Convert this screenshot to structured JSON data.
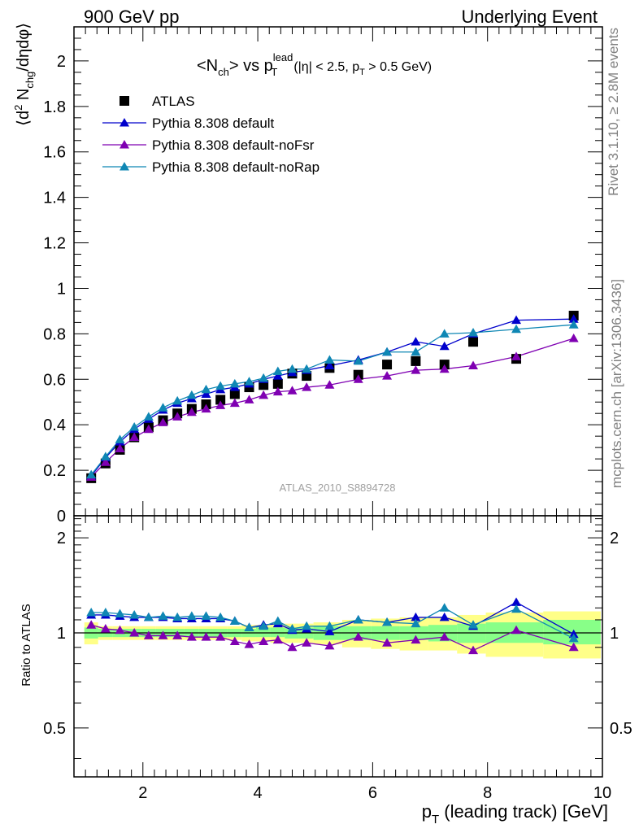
{
  "header": {
    "left": "900 GeV pp",
    "right": "Underlying Event"
  },
  "side_labels": {
    "rivet": "Rivet 3.1.10, ≥ 2.8M events",
    "mcplots": "mcplots.cern.ch [arXiv:1306.3436]"
  },
  "watermark": "ATLAS_2010_S8894728",
  "colors": {
    "atlas": "#000000",
    "default": "#0000cc",
    "noFsr": "#7f00b2",
    "noRap": "#0f87b4",
    "band_outer": "#ffff88",
    "band_inner": "#88ff88"
  },
  "chart_data": [
    {
      "type": "scatter",
      "title": "<N_ch> vs p_T^lead (|η| < 2.5, p_T > 0.5 GeV)",
      "ylabel": "⟨d² N_chg/dηdφ⟩",
      "xlabel": "",
      "xlim": [
        0.8,
        10.0
      ],
      "ylim": [
        0,
        2.15
      ],
      "grid": false,
      "legend_position": "top-left",
      "x": [
        1.1,
        1.35,
        1.6,
        1.85,
        2.1,
        2.35,
        2.6,
        2.85,
        3.1,
        3.35,
        3.6,
        3.85,
        4.1,
        4.35,
        4.6,
        4.85,
        5.25,
        5.75,
        6.25,
        6.75,
        7.25,
        7.75,
        8.5,
        9.5
      ],
      "series": [
        {
          "name": "ATLAS",
          "marker": "square",
          "values": [
            0.165,
            0.23,
            0.29,
            0.345,
            0.39,
            0.42,
            0.45,
            0.47,
            0.49,
            0.51,
            0.535,
            0.565,
            0.575,
            0.58,
            0.625,
            0.615,
            0.65,
            0.62,
            0.665,
            0.68,
            0.665,
            0.765,
            0.69,
            0.88
          ]
        },
        {
          "name": "Pythia 8.308 default",
          "marker": "triangle",
          "values": [
            0.175,
            0.255,
            0.325,
            0.38,
            0.425,
            0.465,
            0.495,
            0.515,
            0.535,
            0.555,
            0.565,
            0.58,
            0.6,
            0.615,
            0.63,
            0.64,
            0.66,
            0.685,
            0.72,
            0.765,
            0.745,
            0.8,
            0.86,
            0.865
          ]
        },
        {
          "name": "Pythia 8.308 default-noFsr",
          "marker": "triangle",
          "values": [
            0.17,
            0.235,
            0.295,
            0.345,
            0.38,
            0.41,
            0.435,
            0.455,
            0.47,
            0.485,
            0.495,
            0.51,
            0.53,
            0.545,
            0.55,
            0.565,
            0.575,
            0.6,
            0.615,
            0.64,
            0.645,
            0.66,
            0.7,
            0.78
          ]
        },
        {
          "name": "Pythia 8.308 default-noRap",
          "marker": "triangle",
          "values": [
            0.18,
            0.26,
            0.335,
            0.39,
            0.435,
            0.475,
            0.505,
            0.53,
            0.555,
            0.57,
            0.58,
            0.59,
            0.605,
            0.635,
            0.645,
            0.645,
            0.685,
            0.68,
            0.72,
            0.72,
            0.8,
            0.805,
            0.82,
            0.84
          ]
        }
      ]
    },
    {
      "type": "line",
      "ylabel": "Ratio to ATLAS",
      "xlabel": "p_T (leading track) [GeV]",
      "xlim": [
        0.8,
        10.0
      ],
      "ylim": [
        0.35,
        2.35
      ],
      "yscale": "log",
      "grid": false,
      "reference_line": 1,
      "x": [
        1.1,
        1.35,
        1.6,
        1.85,
        2.1,
        2.35,
        2.6,
        2.85,
        3.1,
        3.35,
        3.6,
        3.85,
        4.1,
        4.35,
        4.6,
        4.85,
        5.25,
        5.75,
        6.25,
        6.75,
        7.25,
        7.75,
        8.5,
        9.5
      ],
      "bands": {
        "edges": [
          0.98,
          1.22,
          1.47,
          1.72,
          1.97,
          2.22,
          2.47,
          2.72,
          2.97,
          3.22,
          3.47,
          3.72,
          3.97,
          4.22,
          4.47,
          4.72,
          4.97,
          5.47,
          5.97,
          6.47,
          6.97,
          7.47,
          7.97,
          8.97,
          9.97
        ],
        "inner_low": [
          0.96,
          0.97,
          0.97,
          0.97,
          0.97,
          0.97,
          0.97,
          0.97,
          0.97,
          0.97,
          0.97,
          0.97,
          0.97,
          0.97,
          0.96,
          0.96,
          0.95,
          0.95,
          0.95,
          0.95,
          0.94,
          0.93,
          0.93,
          0.92
        ],
        "inner_high": [
          1.04,
          1.03,
          1.03,
          1.03,
          1.03,
          1.03,
          1.03,
          1.03,
          1.03,
          1.03,
          1.03,
          1.03,
          1.04,
          1.04,
          1.04,
          1.04,
          1.05,
          1.05,
          1.05,
          1.05,
          1.06,
          1.07,
          1.08,
          1.1
        ],
        "outer_low": [
          0.92,
          0.95,
          0.95,
          0.95,
          0.95,
          0.95,
          0.95,
          0.95,
          0.95,
          0.95,
          0.95,
          0.94,
          0.94,
          0.93,
          0.93,
          0.93,
          0.92,
          0.9,
          0.89,
          0.88,
          0.88,
          0.86,
          0.84,
          0.83
        ]
      },
      "series": [
        {
          "name": "Pythia 8.308 default",
          "values": [
            1.14,
            1.14,
            1.13,
            1.12,
            1.12,
            1.12,
            1.11,
            1.11,
            1.11,
            1.11,
            1.09,
            1.04,
            1.06,
            1.07,
            1.02,
            1.03,
            1.01,
            1.1,
            1.08,
            1.12,
            1.12,
            1.05,
            1.25,
            0.99
          ]
        },
        {
          "name": "Pythia 8.308 default-noFsr",
          "values": [
            1.06,
            1.03,
            1.02,
            1.0,
            0.98,
            0.98,
            0.98,
            0.97,
            0.97,
            0.97,
            0.94,
            0.92,
            0.94,
            0.95,
            0.9,
            0.93,
            0.91,
            0.97,
            0.93,
            0.95,
            0.97,
            0.88,
            1.02,
            0.9
          ]
        },
        {
          "name": "Pythia 8.308 default-noRap",
          "values": [
            1.16,
            1.16,
            1.15,
            1.14,
            1.12,
            1.13,
            1.12,
            1.13,
            1.13,
            1.12,
            1.09,
            1.04,
            1.05,
            1.09,
            1.03,
            1.05,
            1.05,
            1.1,
            1.08,
            1.07,
            1.2,
            1.06,
            1.19,
            0.96
          ]
        }
      ]
    }
  ]
}
